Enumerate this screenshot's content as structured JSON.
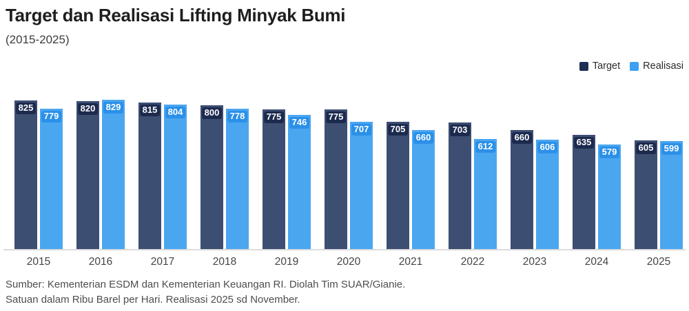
{
  "header": {
    "title": "Target dan Realisasi Lifting Minyak Bumi",
    "subtitle": "(2015-2025)"
  },
  "legend": {
    "target_label": "Target",
    "realisasi_label": "Realisasi"
  },
  "footer": {
    "line1": "Sumber: Kementerian ESDM dan Kementerian Keuangan RI. Diolah Tim SUAR/Gianie.",
    "line2": "Satuan dalam Ribu Barel per Hari. Realisasi 2025 sd November."
  },
  "colors": {
    "target_bar": "#3d4e73",
    "target_chip": "#1c2a4e",
    "target_legend": "#1c2e54",
    "realisasi_bar": "#4ba6f0",
    "realisasi_chip": "#2b90e8",
    "realisasi_legend": "#3ca0f2",
    "baseline": "#dcdcdc"
  },
  "chart_data": {
    "type": "bar",
    "title": "Target dan Realisasi Lifting Minyak Bumi",
    "subtitle": "(2015-2025)",
    "xlabel": "",
    "ylabel": "Ribu Barel per Hari",
    "ylim": [
      0,
      850
    ],
    "grid": false,
    "legend_position": "top-right",
    "categories": [
      "2015",
      "2016",
      "2017",
      "2018",
      "2019",
      "2020",
      "2021",
      "2022",
      "2023",
      "2024",
      "2025"
    ],
    "series": [
      {
        "name": "Target",
        "values": [
          825,
          820,
          815,
          800,
          775,
          775,
          705,
          703,
          660,
          635,
          605
        ]
      },
      {
        "name": "Realisasi",
        "values": [
          779,
          829,
          804,
          778,
          746,
          707,
          660,
          612,
          606,
          579,
          599
        ]
      }
    ]
  }
}
